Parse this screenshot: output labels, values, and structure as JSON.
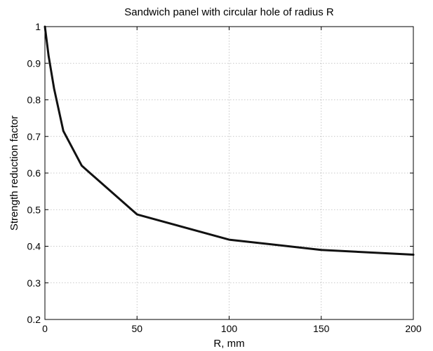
{
  "chart_data": {
    "type": "line",
    "title": "Sandwich panel with circular hole of radius R",
    "xlabel": "R, mm",
    "ylabel": "Strength reduction factor",
    "xlim": [
      0,
      200
    ],
    "ylim": [
      0.2,
      1
    ],
    "xticks": [
      0,
      50,
      100,
      150,
      200
    ],
    "xtick_labels": [
      "0",
      "50",
      "100",
      "150",
      "200"
    ],
    "yticks": [
      0.2,
      0.3,
      0.4,
      0.5,
      0.6,
      0.7,
      0.8,
      0.9,
      1.0
    ],
    "ytick_labels": [
      "0.2",
      "0.3",
      "0.4",
      "0.5",
      "0.6",
      "0.7",
      "0.8",
      "0.9",
      "1"
    ],
    "grid": true,
    "series": [
      {
        "color": "#111111",
        "x": [
          0,
          2,
          5,
          10,
          20,
          50,
          100,
          150,
          200
        ],
        "y": [
          1.0,
          0.92,
          0.83,
          0.715,
          0.62,
          0.487,
          0.418,
          0.39,
          0.377
        ]
      }
    ]
  }
}
